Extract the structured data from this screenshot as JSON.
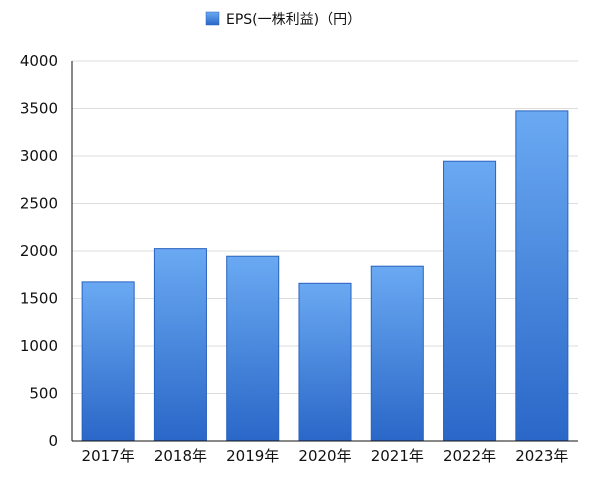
{
  "chart_data": {
    "type": "bar",
    "categories": [
      "2017年",
      "2018年",
      "2019年",
      "2020年",
      "2021年",
      "2022年",
      "2023年"
    ],
    "series": [
      {
        "name": "EPS(一株利益)（円）",
        "values": [
          1675,
          2025,
          1945,
          1660,
          1840,
          2945,
          3475
        ]
      }
    ],
    "ylim": [
      0,
      4000
    ],
    "yticks": [
      0,
      500,
      1000,
      1500,
      2000,
      2500,
      3000,
      3500,
      4000
    ],
    "grid": true,
    "legend_position": "top",
    "colors": {
      "bar_top": "#6aa9f2",
      "bar_bottom": "#2a67c8",
      "bar_edge": "#2a62bf",
      "grid": "#dddddd",
      "axis": "#111111"
    }
  }
}
